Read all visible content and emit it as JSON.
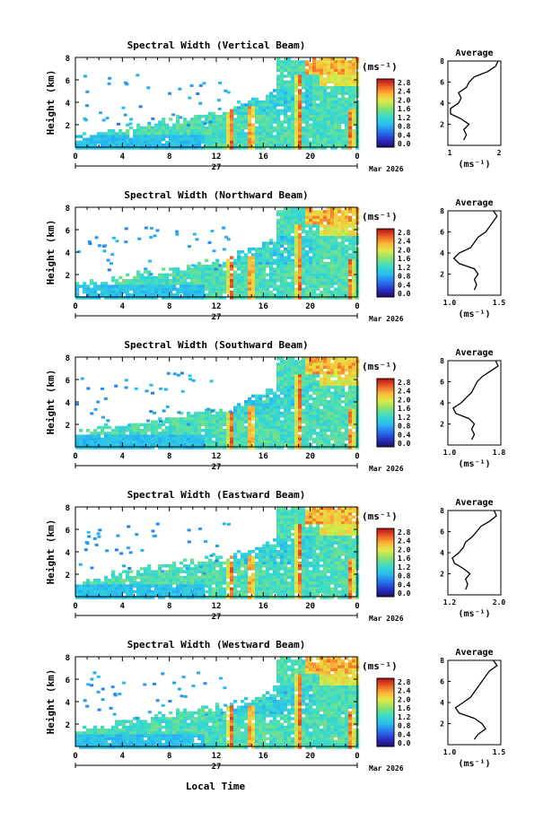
{
  "figure": {
    "xlabel": "Local Time",
    "date_label": "Mar 2026",
    "day_label": "27",
    "colorbar_unit": "(ms⁻¹)",
    "colorbar_ticks": [
      "2.8",
      "2.4",
      "2.0",
      "1.6",
      "1.2",
      "0.8",
      "0.4",
      "0.0"
    ],
    "xticks": [
      "0",
      "4",
      "8",
      "12",
      "16",
      "20",
      "0"
    ],
    "yticks": [
      "8",
      "6",
      "4",
      "2"
    ],
    "ylabel": "Height (km)",
    "avg_title": "Average",
    "avg_xlabel": "(ms⁻¹)",
    "colors": {
      "low": "#2a1e8c",
      "mid": "#37c8f0",
      "high": "#fef545",
      "peak": "#c81e1e"
    }
  },
  "chart_data": [
    {
      "type": "heatmap",
      "title": "Spectral Width (Vertical Beam)",
      "xlabel": "Local Time",
      "ylabel": "Height (km)",
      "xlim": [
        0,
        24
      ],
      "ylim": [
        0,
        8
      ],
      "colorbar": {
        "label": "(ms⁻¹)",
        "range": [
          0.0,
          2.8
        ]
      },
      "average_profile": {
        "type": "line",
        "title": "Average",
        "xlabel": "(ms⁻¹)",
        "xticks": [
          "1",
          "2"
        ],
        "xlim": [
          1.0,
          2.0
        ],
        "ylim": [
          0,
          8
        ],
        "height": [
          0.5,
          1.0,
          1.5,
          2.0,
          2.5,
          3.0,
          3.5,
          4.0,
          4.5,
          5.0,
          5.5,
          6.0,
          6.5,
          7.0,
          7.5,
          8.0
        ],
        "values": [
          1.3,
          1.35,
          1.3,
          1.4,
          1.25,
          1.05,
          1.05,
          1.2,
          1.25,
          1.2,
          1.35,
          1.4,
          1.5,
          1.75,
          1.9,
          1.95
        ]
      }
    },
    {
      "type": "heatmap",
      "title": "Spectral Width (Northward Beam)",
      "xlabel": "Local Time",
      "ylabel": "Height (km)",
      "xlim": [
        0,
        24
      ],
      "ylim": [
        0,
        8
      ],
      "colorbar": {
        "label": "(ms⁻¹)",
        "range": [
          0.0,
          2.8
        ]
      },
      "average_profile": {
        "type": "line",
        "title": "Average",
        "xlabel": "(ms⁻¹)",
        "xticks": [
          "1.0",
          "1.5"
        ],
        "xlim": [
          0.9,
          1.6
        ],
        "ylim": [
          0,
          8
        ],
        "height": [
          0.5,
          1.0,
          1.5,
          2.0,
          2.5,
          3.0,
          3.5,
          4.0,
          4.5,
          5.0,
          5.5,
          6.0,
          6.5,
          7.0,
          7.5,
          8.0
        ],
        "values": [
          1.25,
          1.28,
          1.25,
          1.3,
          1.25,
          1.05,
          0.98,
          1.05,
          1.2,
          1.25,
          1.3,
          1.4,
          1.45,
          1.5,
          1.55,
          1.5
        ]
      }
    },
    {
      "type": "heatmap",
      "title": "Spectral Width (Southward Beam)",
      "xlabel": "Local Time",
      "ylabel": "Height (km)",
      "xlim": [
        0,
        24
      ],
      "ylim": [
        0,
        8
      ],
      "colorbar": {
        "label": "(ms⁻¹)",
        "range": [
          0.0,
          2.8
        ]
      },
      "average_profile": {
        "type": "line",
        "title": "Average",
        "xlabel": "(ms⁻¹)",
        "xticks": [
          "1.0",
          "1.8"
        ],
        "xlim": [
          0.9,
          1.9
        ],
        "ylim": [
          0,
          8
        ],
        "height": [
          0.5,
          1.0,
          1.5,
          2.0,
          2.5,
          3.0,
          3.5,
          4.0,
          4.5,
          5.0,
          5.5,
          6.0,
          6.5,
          7.0,
          7.5,
          8.0
        ],
        "values": [
          1.35,
          1.4,
          1.35,
          1.4,
          1.3,
          1.05,
          1.0,
          1.15,
          1.25,
          1.35,
          1.4,
          1.45,
          1.55,
          1.7,
          1.85,
          1.8
        ]
      }
    },
    {
      "type": "heatmap",
      "title": "Spectral Width (Eastward Beam)",
      "xlabel": "Local Time",
      "ylabel": "Height (km)",
      "xlim": [
        0,
        24
      ],
      "ylim": [
        0,
        8
      ],
      "colorbar": {
        "label": "(ms⁻¹)",
        "range": [
          0.0,
          2.8
        ]
      },
      "average_profile": {
        "type": "line",
        "title": "Average",
        "xlabel": "(ms⁻¹)",
        "xticks": [
          "1.2",
          "2.0"
        ],
        "xlim": [
          1.0,
          2.2
        ],
        "ylim": [
          0,
          8
        ],
        "height": [
          0.5,
          1.0,
          1.5,
          2.0,
          2.5,
          3.0,
          3.5,
          4.0,
          4.5,
          5.0,
          5.5,
          6.0,
          6.5,
          7.0,
          7.5,
          8.0
        ],
        "values": [
          1.4,
          1.45,
          1.4,
          1.5,
          1.35,
          1.15,
          1.1,
          1.25,
          1.35,
          1.4,
          1.55,
          1.65,
          1.75,
          1.95,
          2.1,
          2.05
        ]
      }
    },
    {
      "type": "heatmap",
      "title": "Spectral Width (Westward Beam)",
      "xlabel": "Local Time",
      "ylabel": "Height (km)",
      "xlim": [
        0,
        24
      ],
      "ylim": [
        0,
        8
      ],
      "colorbar": {
        "label": "(ms⁻¹)",
        "range": [
          0.0,
          2.8
        ]
      },
      "average_profile": {
        "type": "line",
        "title": "Average",
        "xlabel": "(ms⁻¹)",
        "xticks": [
          "1.0",
          "1.5"
        ],
        "xlim": [
          0.9,
          1.6
        ],
        "ylim": [
          0,
          8
        ],
        "height": [
          0.5,
          1.0,
          1.5,
          2.0,
          2.5,
          3.0,
          3.5,
          4.0,
          4.5,
          5.0,
          5.5,
          6.0,
          6.5,
          7.0,
          7.5,
          8.0
        ],
        "values": [
          1.25,
          1.3,
          1.4,
          1.35,
          1.25,
          1.05,
          1.0,
          1.1,
          1.2,
          1.25,
          1.3,
          1.35,
          1.4,
          1.45,
          1.55,
          1.5
        ]
      }
    }
  ]
}
